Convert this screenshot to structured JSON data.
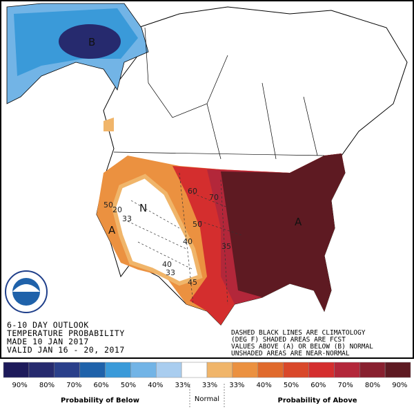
{
  "title_block": [
    "6-10 DAY OUTLOOK",
    "TEMPERATURE PROBABILITY",
    "MADE 10 JAN 2017",
    "VALID JAN 16 - 20, 2017"
  ],
  "notes": [
    "DASHED BLACK LINES ARE CLIMATOLOGY",
    "(DEG F) SHADED AREAS ARE FCST",
    "VALUES ABOVE (A) OR BELOW (B) NORMAL",
    "UNSHADED AREAS ARE NEAR-NORMAL"
  ],
  "map_labels": [
    "B",
    "N",
    "A",
    "A",
    "50",
    "20",
    "33",
    "60",
    "70",
    "50",
    "40",
    "35",
    "45",
    "40",
    "33"
  ],
  "legend": {
    "colors": [
      "#1d1a5a",
      "#262a6e",
      "#2a3f8a",
      "#1f62aa",
      "#3a9ad9",
      "#72b4e6",
      "#a9cdef",
      "#ffffff",
      "#f0b56a",
      "#eb9140",
      "#e06a2c",
      "#d9482a",
      "#d42e2e",
      "#b3273a",
      "#88202f",
      "#5e1a22"
    ],
    "ticks": [
      "90%",
      "80%",
      "70%",
      "60%",
      "50%",
      "40%",
      "33%",
      "33%",
      "33%",
      "40%",
      "50%",
      "60%",
      "70%",
      "80%",
      "90%"
    ],
    "below_label": "Probability of Below",
    "normal_label": "Normal",
    "above_label": "Probability of Above"
  }
}
